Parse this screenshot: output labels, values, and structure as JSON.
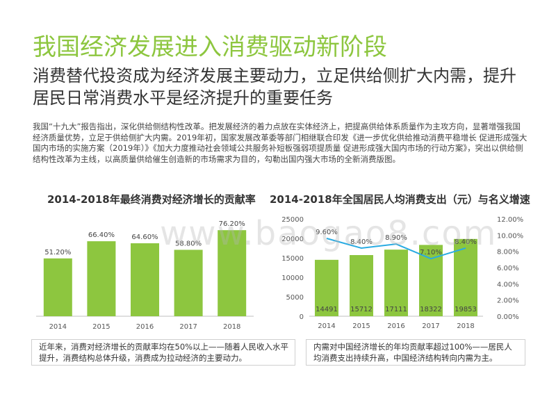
{
  "page": {
    "title": "我国经济发展进入消费驱动新阶段",
    "subtitle": "消费替代投资成为经济发展主要动力，立足供给侧扩大内需，提升居民日常消费水平是经济提升的重要任务",
    "body": "我国“十九大”报告指出，深化供给侧结构性改革。把发展经济的着力点放在实体经济上，把提高供给体系质量作为主攻方向，显著增强我国经济质量优势，立足于供给侧扩大内需。2019年初，国家发展改革委等部门相继联合印发《进一步优化供给推动消费平稳增长 促进形成强大国内市场的实施方案（2019年）》《加大力度推动社会领域公共服务补短板强弱项提质量 促进形成强大国内市场的行动方案》，突出以供给侧结构性改革为主线，以高质量供给催生创造新的市场需求为目的，勾勒出国内强大市场的全新消费版图。",
    "note_left": "近年来，消费对经济增长的贡献率均在50%以上——随着人民收入水平提升，消费结构总体升级，消费成为拉动经济的主要动力。",
    "note_right": "内需对中国经济增长的年均贡献率超过100%——居民人均消费支出持续升高，中国经济结构转向内需为主。",
    "watermark": "www.baogao8.com"
  },
  "colors": {
    "title_green": "#8dc63f",
    "bar_green": "#8dc63f",
    "line_blue": "#29abe2"
  },
  "chart_data": [
    {
      "type": "bar",
      "title": "2014-2018年最终消费对经济增长的贡献率",
      "categories": [
        "2014",
        "2015",
        "2016",
        "2017",
        "2018"
      ],
      "values": [
        51.2,
        66.4,
        64.6,
        58.8,
        76.2
      ],
      "labels": [
        "51.20%",
        "66.40%",
        "64.60%",
        "58.80%",
        "76.20%"
      ],
      "ylim": [
        0,
        80
      ],
      "grid": false
    },
    {
      "type": "bar+line",
      "title": "2014-2018年全国居民人均消费支出（元）与名义增速",
      "categories": [
        "2014",
        "2015",
        "2016",
        "2017",
        "2018"
      ],
      "bar_values": [
        14491,
        15712,
        17111,
        18322,
        19853
      ],
      "bar_labels": [
        "14491",
        "15712",
        "17111",
        "18322",
        "19853"
      ],
      "line_values": [
        9.6,
        8.4,
        8.9,
        7.1,
        8.4
      ],
      "line_labels": [
        "9.60%",
        "8.40%",
        "8.90%",
        "7.10%",
        "8.40%"
      ],
      "y_left": {
        "lim": [
          0,
          25000
        ],
        "ticks": [
          "0",
          "5000",
          "10000",
          "15000",
          "20000",
          "25000"
        ]
      },
      "y_right": {
        "lim": [
          0,
          12
        ],
        "ticks": [
          "0.00%",
          "2.00%",
          "4.00%",
          "6.00%",
          "8.00%",
          "10.00%",
          "12.00%"
        ]
      },
      "grid": false
    }
  ]
}
